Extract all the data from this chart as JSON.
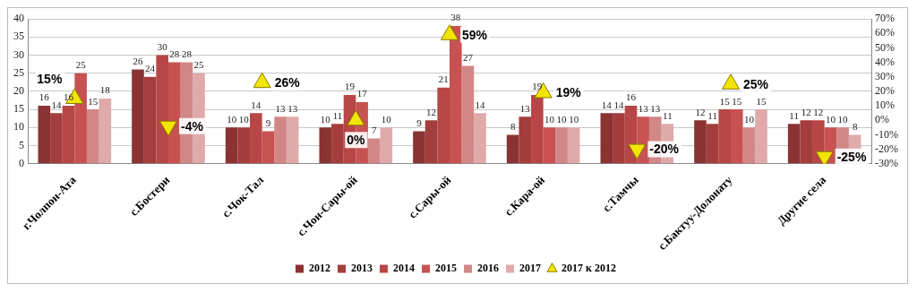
{
  "chart_data": {
    "type": "bar",
    "categories": [
      "г.Чолпон-Ата",
      "с.Бостери",
      "с.Чок-Тал",
      "с.Чон-Сары-ой",
      "с.Сары-ой",
      "с.Кара-ой",
      "с.Тамчы",
      "с.Бактуу-Долонату",
      "Другие села"
    ],
    "series": [
      {
        "name": "2012",
        "color": "#8b3333",
        "values": [
          16,
          26,
          10,
          10,
          9,
          8,
          14,
          12,
          11
        ]
      },
      {
        "name": "2013",
        "color": "#a43d3d",
        "values": [
          14,
          24,
          10,
          11,
          12,
          13,
          14,
          11,
          12
        ]
      },
      {
        "name": "2014",
        "color": "#b84646",
        "values": [
          16,
          30,
          14,
          19,
          21,
          19,
          16,
          15,
          12
        ]
      },
      {
        "name": "2015",
        "color": "#c85252",
        "values": [
          25,
          28,
          9,
          17,
          38,
          10,
          13,
          15,
          10
        ]
      },
      {
        "name": "2016",
        "color": "#d28787",
        "values": [
          15,
          28,
          13,
          7,
          27,
          10,
          13,
          10,
          10
        ]
      },
      {
        "name": "2017",
        "color": "#dfaaaa",
        "values": [
          18,
          25,
          13,
          10,
          14,
          10,
          11,
          15,
          8
        ]
      },
      {
        "name": "2017 к 2012",
        "type": "scatter",
        "axis": "y2",
        "marker": "triangle",
        "color": "#f2e600",
        "x": [
          "г.Чолпон-Ата",
          "с.Бостери",
          "с.Чок-Тал",
          "с.Чон-Сары-ой",
          "с.Сары-ой",
          "с.Кара-ой",
          "с.Тамчы",
          "с.Бактуу-Долонату",
          "Другие села"
        ],
        "values": [
          15,
          -4,
          26,
          0,
          59,
          19,
          -20,
          25,
          -25
        ],
        "value_labels": [
          "15%",
          "-4%",
          "26%",
          "0%",
          "59%",
          "19%",
          "-20%",
          "25%",
          "-25%"
        ]
      }
    ],
    "ylim": [
      0,
      40
    ],
    "yticks": [
      0,
      5,
      10,
      15,
      20,
      25,
      30,
      35,
      40
    ],
    "y2lim": [
      -30,
      70
    ],
    "y2ticks": [
      {
        "value": -30,
        "label": "-30%"
      },
      {
        "value": -20,
        "label": "-20%"
      },
      {
        "value": -10,
        "label": "-10%"
      },
      {
        "value": 0,
        "label": "0%"
      },
      {
        "value": 10,
        "label": "10%"
      },
      {
        "value": 20,
        "label": "20%"
      },
      {
        "value": 30,
        "label": "30%"
      },
      {
        "value": 40,
        "label": "40%"
      },
      {
        "value": 50,
        "label": "50%"
      },
      {
        "value": 60,
        "label": "60%"
      },
      {
        "value": 70,
        "label": "70%"
      }
    ],
    "grid": "y",
    "legend": "bottom",
    "data_labels": true
  }
}
